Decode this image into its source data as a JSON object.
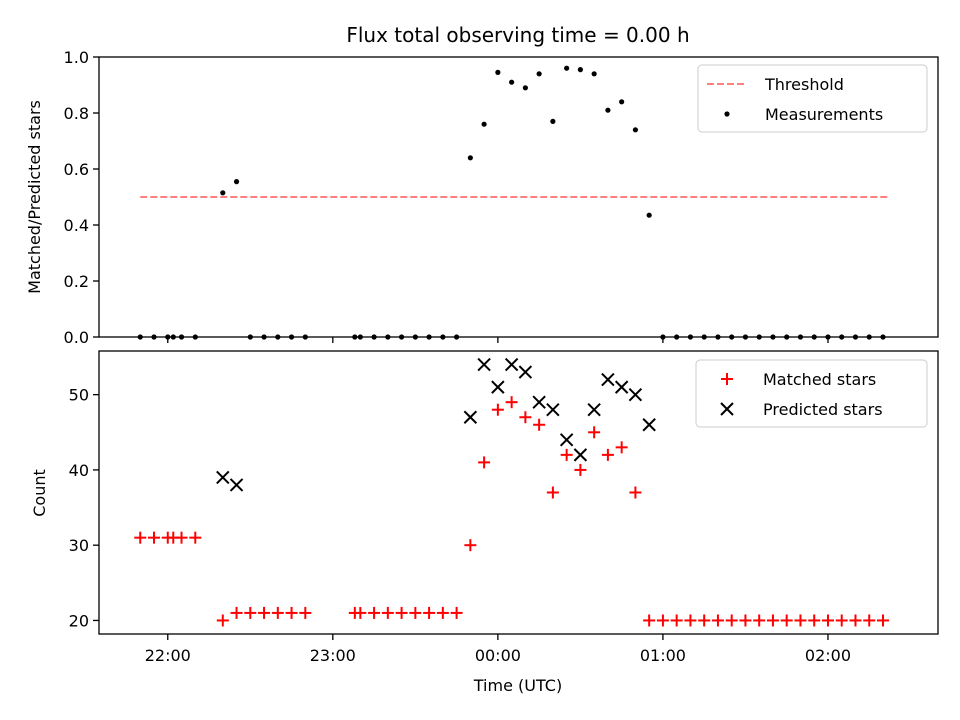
{
  "chart_data": [
    {
      "type": "scatter",
      "title": "Flux total observing time = 0.00 h",
      "xlabel": "",
      "ylabel": "Matched/Predicted stars",
      "xlim": [
        "21:35",
        "02:40"
      ],
      "ylim": [
        0,
        1.0
      ],
      "yticks": [
        "0.0",
        "0.2",
        "0.4",
        "0.6",
        "0.8",
        "1.0"
      ],
      "grid": false,
      "legend_position": "top-right",
      "threshold": {
        "name": "Threshold",
        "value": 0.5,
        "x_start": "21:50",
        "x_end": "02:22",
        "color": "#ff7f7f",
        "style": "dashed"
      },
      "series": [
        {
          "name": "Measurements",
          "marker": "dot",
          "color": "#000000",
          "points": [
            [
              "21:50",
              0
            ],
            [
              "21:55",
              0
            ],
            [
              "22:00",
              0
            ],
            [
              "22:02",
              0
            ],
            [
              "22:05",
              0
            ],
            [
              "22:10",
              0
            ],
            [
              "22:20",
              0.515
            ],
            [
              "22:25",
              0.555
            ],
            [
              "22:30",
              0
            ],
            [
              "22:35",
              0
            ],
            [
              "22:40",
              0
            ],
            [
              "22:45",
              0
            ],
            [
              "22:50",
              0
            ],
            [
              "23:08",
              0
            ],
            [
              "23:10",
              0
            ],
            [
              "23:15",
              0
            ],
            [
              "23:20",
              0
            ],
            [
              "23:25",
              0
            ],
            [
              "23:30",
              0
            ],
            [
              "23:35",
              0
            ],
            [
              "23:40",
              0
            ],
            [
              "23:45",
              0
            ],
            [
              "23:50",
              0.64
            ],
            [
              "23:55",
              0.76
            ],
            [
              "00:00",
              0.945
            ],
            [
              "00:05",
              0.91
            ],
            [
              "00:10",
              0.89
            ],
            [
              "00:15",
              0.94
            ],
            [
              "00:20",
              0.77
            ],
            [
              "00:25",
              0.96
            ],
            [
              "00:30",
              0.955
            ],
            [
              "00:35",
              0.94
            ],
            [
              "00:40",
              0.81
            ],
            [
              "00:45",
              0.84
            ],
            [
              "00:50",
              0.74
            ],
            [
              "00:55",
              0.435
            ],
            [
              "01:00",
              0
            ],
            [
              "01:05",
              0
            ],
            [
              "01:10",
              0
            ],
            [
              "01:15",
              0
            ],
            [
              "01:20",
              0
            ],
            [
              "01:25",
              0
            ],
            [
              "01:30",
              0
            ],
            [
              "01:35",
              0
            ],
            [
              "01:40",
              0
            ],
            [
              "01:45",
              0
            ],
            [
              "01:50",
              0
            ],
            [
              "01:55",
              0
            ],
            [
              "02:00",
              0
            ],
            [
              "02:05",
              0
            ],
            [
              "02:10",
              0
            ],
            [
              "02:15",
              0
            ],
            [
              "02:20",
              0
            ]
          ]
        }
      ]
    },
    {
      "type": "scatter",
      "title": "",
      "xlabel": "Time (UTC)",
      "ylabel": "Count",
      "xlim": [
        "21:35",
        "02:40"
      ],
      "ylim": [
        18.2,
        55.8
      ],
      "yticks": [
        "20",
        "30",
        "40",
        "50"
      ],
      "xticks": [
        "22:00",
        "23:00",
        "00:00",
        "01:00",
        "02:00"
      ],
      "grid": false,
      "legend_position": "top-right",
      "series": [
        {
          "name": "Matched stars",
          "marker": "plus",
          "color": "#ff0000",
          "points": [
            [
              "21:50",
              31
            ],
            [
              "21:55",
              31
            ],
            [
              "22:00",
              31
            ],
            [
              "22:02",
              31
            ],
            [
              "22:05",
              31
            ],
            [
              "22:10",
              31
            ],
            [
              "22:20",
              20
            ],
            [
              "22:25",
              21
            ],
            [
              "22:30",
              21
            ],
            [
              "22:35",
              21
            ],
            [
              "22:40",
              21
            ],
            [
              "22:45",
              21
            ],
            [
              "22:50",
              21
            ],
            [
              "23:08",
              21
            ],
            [
              "23:10",
              21
            ],
            [
              "23:15",
              21
            ],
            [
              "23:20",
              21
            ],
            [
              "23:25",
              21
            ],
            [
              "23:30",
              21
            ],
            [
              "23:35",
              21
            ],
            [
              "23:40",
              21
            ],
            [
              "23:45",
              21
            ],
            [
              "23:50",
              30
            ],
            [
              "23:55",
              41
            ],
            [
              "00:00",
              48
            ],
            [
              "00:05",
              49
            ],
            [
              "00:10",
              47
            ],
            [
              "00:15",
              46
            ],
            [
              "00:20",
              37
            ],
            [
              "00:25",
              42
            ],
            [
              "00:30",
              40
            ],
            [
              "00:35",
              45
            ],
            [
              "00:40",
              42
            ],
            [
              "00:45",
              43
            ],
            [
              "00:50",
              37
            ],
            [
              "00:55",
              20
            ],
            [
              "01:00",
              20
            ],
            [
              "01:05",
              20
            ],
            [
              "01:10",
              20
            ],
            [
              "01:15",
              20
            ],
            [
              "01:20",
              20
            ],
            [
              "01:25",
              20
            ],
            [
              "01:30",
              20
            ],
            [
              "01:35",
              20
            ],
            [
              "01:40",
              20
            ],
            [
              "01:45",
              20
            ],
            [
              "01:50",
              20
            ],
            [
              "01:55",
              20
            ],
            [
              "02:00",
              20
            ],
            [
              "02:05",
              20
            ],
            [
              "02:10",
              20
            ],
            [
              "02:15",
              20
            ],
            [
              "02:20",
              20
            ]
          ]
        },
        {
          "name": "Predicted stars",
          "marker": "x",
          "color": "#000000",
          "points": [
            [
              "22:20",
              39
            ],
            [
              "22:25",
              38
            ],
            [
              "23:50",
              47
            ],
            [
              "23:55",
              54
            ],
            [
              "00:00",
              51
            ],
            [
              "00:05",
              54
            ],
            [
              "00:10",
              53
            ],
            [
              "00:15",
              49
            ],
            [
              "00:20",
              48
            ],
            [
              "00:25",
              44
            ],
            [
              "00:30",
              42
            ],
            [
              "00:35",
              48
            ],
            [
              "00:40",
              52
            ],
            [
              "00:45",
              51
            ],
            [
              "00:50",
              50
            ],
            [
              "00:55",
              46
            ]
          ]
        }
      ]
    }
  ]
}
